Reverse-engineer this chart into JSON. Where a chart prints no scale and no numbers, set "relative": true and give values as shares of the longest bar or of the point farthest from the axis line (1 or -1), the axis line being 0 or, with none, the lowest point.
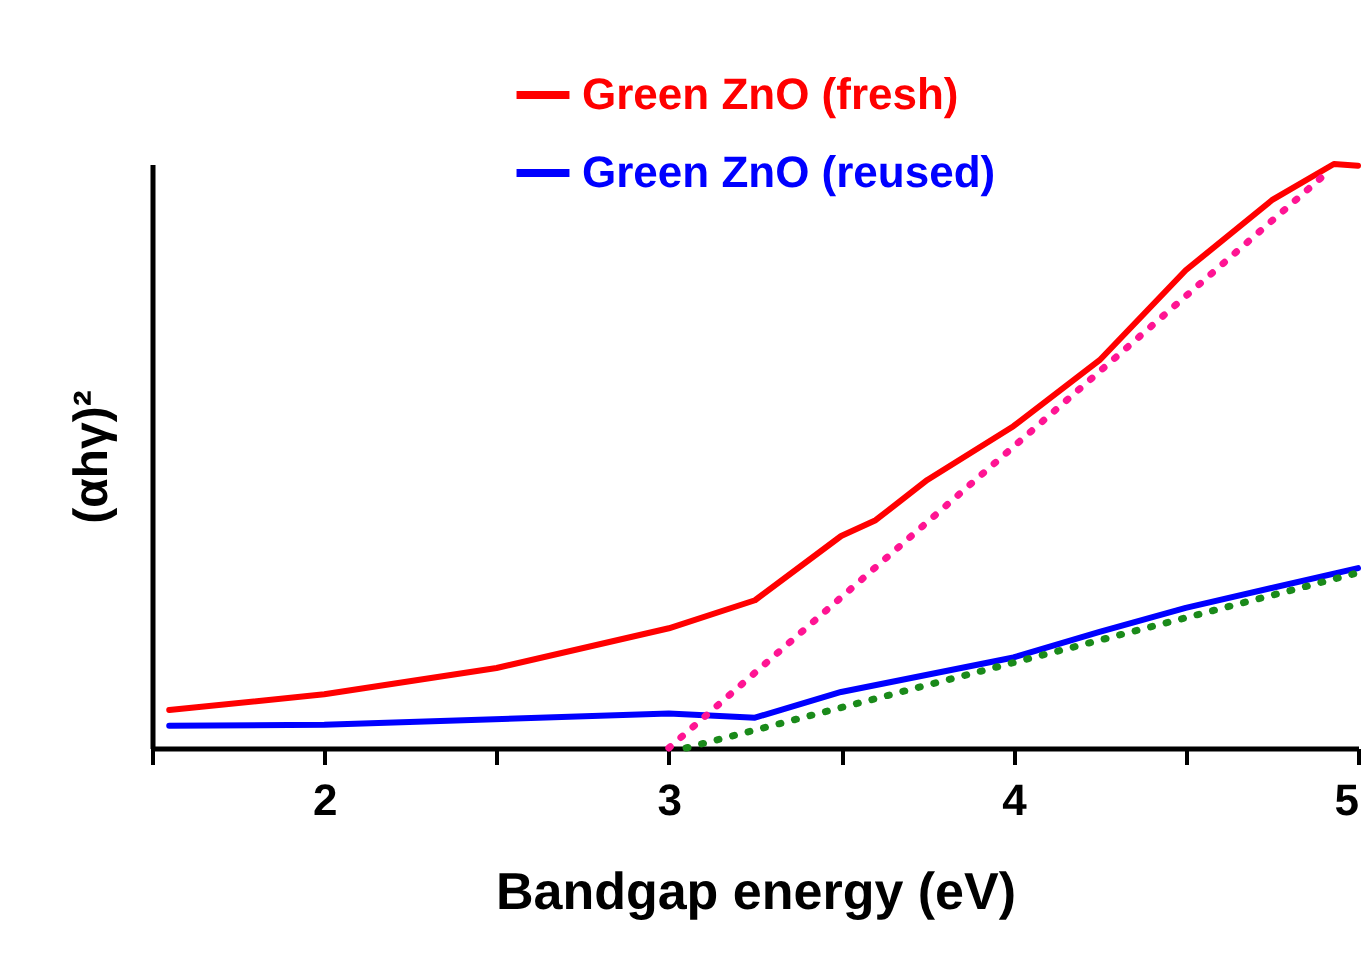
{
  "chart_data": {
    "type": "line",
    "relative": true,
    "xlabel": "Bandgap energy (eV)",
    "ylabel": "(αhγ)²",
    "xlim": [
      1.5,
      5
    ],
    "xticks": [
      {
        "value": 1.5,
        "label": null
      },
      2,
      {
        "value": 2.5,
        "label": null
      },
      3,
      {
        "value": 3.5,
        "label": null
      },
      4,
      {
        "value": 4.5,
        "label": null
      },
      5
    ],
    "legend": "top",
    "grid": false,
    "tick_labels": "x",
    "series": [
      {
        "name": "Green ZnO (fresh)",
        "color": "#ff0000",
        "line_style": "solid",
        "x": [
          1.55,
          2,
          2.5,
          3,
          3.25,
          3.5,
          3.6,
          3.75,
          4,
          4.25,
          4.5,
          4.75,
          4.93,
          5
        ],
        "values": [
          0.065,
          0.092,
          0.137,
          0.205,
          0.253,
          0.363,
          0.39,
          0.459,
          0.551,
          0.664,
          0.818,
          0.938,
          1,
          0.997
        ]
      },
      {
        "name": "Green ZnO (reused)",
        "color": "#0000ff",
        "line_style": "solid",
        "x": [
          1.55,
          2,
          3,
          3.25,
          3.5,
          4,
          4.25,
          4.5,
          5
        ],
        "values": [
          0.038,
          0.04,
          0.059,
          0.052,
          0.096,
          0.155,
          0.199,
          0.24,
          0.308
        ]
      },
      {
        "color": "#ff1493",
        "line_style": "dotted",
        "x": [
          3.0,
          4.9
        ],
        "values": [
          0,
          0.98
        ]
      },
      {
        "color": "#1a8a1a",
        "line_style": "dotted",
        "x": [
          3.05,
          5
        ],
        "values": [
          0,
          0.3
        ]
      }
    ]
  }
}
